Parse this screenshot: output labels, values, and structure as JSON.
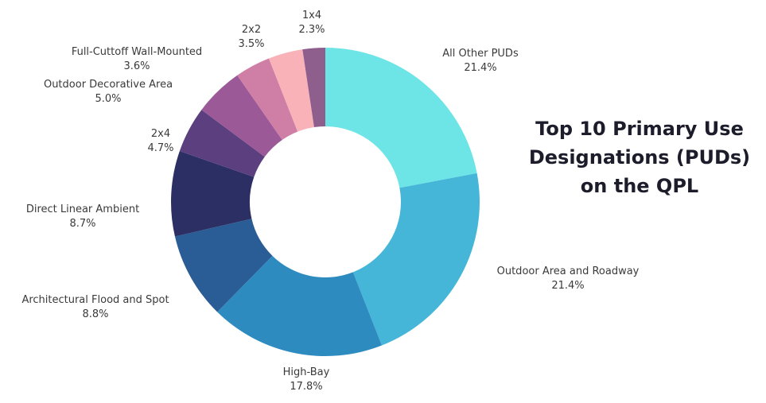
{
  "chart_data": {
    "type": "pie",
    "title_lines": [
      "Top 10 Primary Use",
      "Designations (PUDs)",
      "on the QPL"
    ],
    "donut": true,
    "slices": [
      {
        "name": "All Other PUDs",
        "label": "21.4%",
        "value": 21.4,
        "color": "#6de4e6"
      },
      {
        "name": "Outdoor Area and Roadway",
        "label": "21.4%",
        "value": 21.4,
        "color": "#45b6d7"
      },
      {
        "name": "High-Bay",
        "label": "17.8%",
        "value": 17.8,
        "color": "#2e8bc0"
      },
      {
        "name": "Architectural Flood and Spot",
        "label": "8.8%",
        "value": 8.8,
        "color": "#2a5d96"
      },
      {
        "name": "Direct Linear Ambient",
        "label": "8.7%",
        "value": 8.7,
        "color": "#2c2f63"
      },
      {
        "name": "2x4",
        "label": "4.7%",
        "value": 4.7,
        "color": "#5c3f7f"
      },
      {
        "name": "Outdoor Decorative Area",
        "label": "5.0%",
        "value": 5.0,
        "color": "#9b5a97"
      },
      {
        "name": "Full-Cuttoff Wall-Mounted",
        "label": "3.6%",
        "value": 3.6,
        "color": "#cf7fa6"
      },
      {
        "name": "2x2",
        "label": "3.5%",
        "value": 3.5,
        "color": "#f8b2b8"
      },
      {
        "name": "1x4",
        "label": "2.3%",
        "value": 2.3,
        "color": "#c98ba6"
      }
    ],
    "last_slice_color": "#8e5f8c",
    "legend": "none"
  }
}
